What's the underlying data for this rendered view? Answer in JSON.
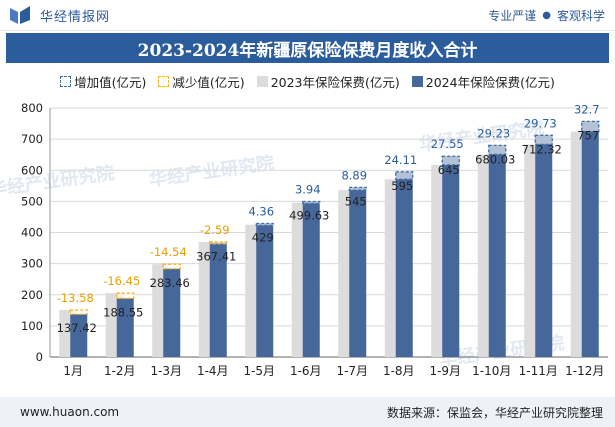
{
  "header": {
    "brand": "华经情报网",
    "tagline_left": "专业严谨",
    "tagline_right": "客观科学"
  },
  "title": "2023-2024年新疆原保险保费月度收入合计",
  "legend": {
    "increase": "增加值(亿元)",
    "decrease": "减少值(亿元)",
    "s2023": "2023年保险保费(亿元)",
    "s2024": "2024年保险保费(亿元)"
  },
  "footer": {
    "url": "www.huaon.com",
    "source": "数据来源：保监会，华经产业研究院整理"
  },
  "watermark": "华经产业研究院",
  "colors": {
    "s2023": "#dcdcdc",
    "s2024": "#46679a",
    "increase": "#3d6ea8",
    "decrease": "#f5b21a",
    "title_bg": "#2b5d9c"
  },
  "chart_data": {
    "type": "bar",
    "categories": [
      "1月",
      "1-2月",
      "1-3月",
      "1-4月",
      "1-5月",
      "1-6月",
      "1-7月",
      "1-8月",
      "1-9月",
      "1-10月",
      "1-11月",
      "1-12月"
    ],
    "series": [
      {
        "name": "2023年保险保费(亿元)",
        "values": [
          151,
          205,
          298,
          370,
          425,
          496,
          536,
          571,
          617,
          651,
          683,
          724.3
        ]
      },
      {
        "name": "2024年保险保费(亿元)",
        "values": [
          137.42,
          188.55,
          283.46,
          367.41,
          429,
          499.63,
          545,
          595,
          645,
          680.03,
          712.32,
          757
        ]
      },
      {
        "name": "增加值(亿元)",
        "values": [
          null,
          null,
          null,
          null,
          4.36,
          3.94,
          8.89,
          24.11,
          27.55,
          29.23,
          29.73,
          32.7
        ]
      },
      {
        "name": "减少值(亿元)",
        "values": [
          -13.58,
          -16.45,
          -14.54,
          -2.59,
          null,
          null,
          null,
          null,
          null,
          null,
          null,
          null
        ]
      }
    ],
    "value_labels_2024": [
      "137.42",
      "188.55",
      "283.46",
      "367.41",
      "429",
      "499.63",
      "545",
      "595",
      "645",
      "680.03",
      "712.32",
      "757"
    ],
    "change_labels": [
      "-13.58",
      "-16.45",
      "-14.54",
      "-2.59",
      "4.36",
      "3.94",
      "8.89",
      "24.11",
      "27.55",
      "29.23",
      "29.73",
      "32.7"
    ],
    "yticks": [
      0,
      100,
      200,
      300,
      400,
      500,
      600,
      700,
      800
    ],
    "ylim": [
      0,
      800
    ],
    "grid": true
  }
}
